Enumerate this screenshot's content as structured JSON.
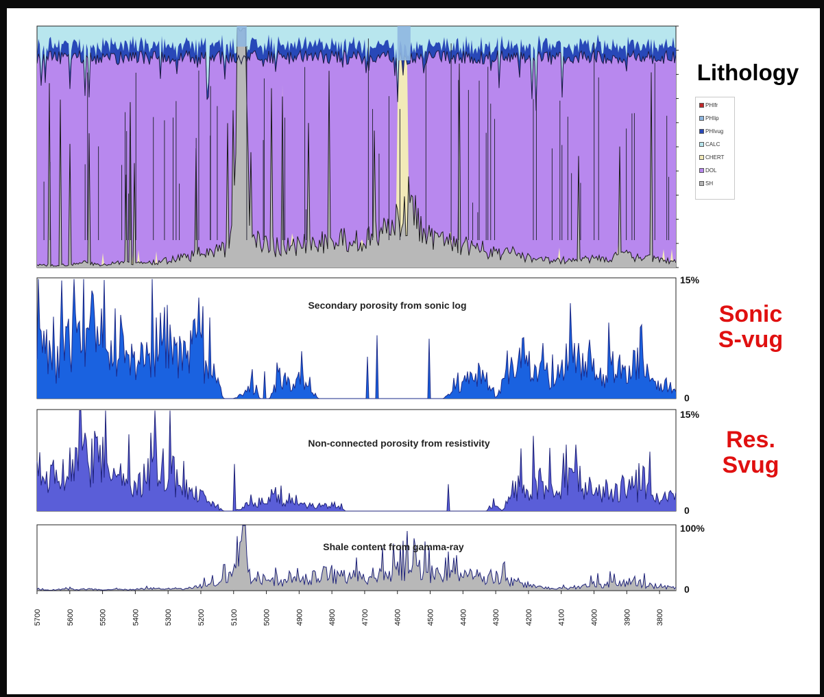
{
  "side_labels": {
    "lithology": "Lithology",
    "sonic_line1": "Sonic",
    "sonic_line2": "S-vug",
    "res_line1": "Res.",
    "res_line2": "Svug"
  },
  "chart_data": [
    {
      "type": "area",
      "title": "",
      "series": [
        {
          "name": "PHIfr",
          "color": "#c0282a"
        },
        {
          "name": "PHIip",
          "color": "#8fb7e0"
        },
        {
          "name": "PHIvug",
          "color": "#2848b8"
        },
        {
          "name": "CALC",
          "color": "#b8e6ee"
        },
        {
          "name": "CHERT",
          "color": "#f2eab8"
        },
        {
          "name": "DOL",
          "color": "#b888ee"
        },
        {
          "name": "SH",
          "color": "#b8b8b8"
        }
      ],
      "xlim": [
        5700,
        3750
      ],
      "ylim": [
        0,
        1
      ],
      "grid": false,
      "legend": "right"
    },
    {
      "type": "area",
      "title": "Secondary porosity from sonic log",
      "ylim": [
        0,
        15
      ],
      "ytick_labels": [
        "15%",
        "0"
      ],
      "color": "#1a62e0"
    },
    {
      "type": "area",
      "title": "Non-connected porosity from resistivity",
      "ylim": [
        0,
        15
      ],
      "ytick_labels": [
        "15%",
        "0"
      ],
      "color": "#5a5ed8"
    },
    {
      "type": "area",
      "title": "Shale content from gamma-ray",
      "ylim": [
        0,
        100
      ],
      "ytick_labels": [
        "100%",
        "0"
      ],
      "color": "#b8b8b8"
    }
  ],
  "x_axis": {
    "ticks": [
      "5700",
      "5600",
      "5500",
      "5400",
      "5300",
      "5200",
      "5100",
      "5000",
      "4900",
      "4800",
      "4700",
      "4600",
      "4500",
      "4400",
      "4300",
      "4200",
      "4100",
      "4000",
      "3900",
      "3800"
    ]
  },
  "profiles": {
    "sonic": [
      [
        5700,
        14
      ],
      [
        5680,
        8
      ],
      [
        5640,
        5
      ],
      [
        5600,
        9
      ],
      [
        5560,
        7
      ],
      [
        5540,
        12
      ],
      [
        5520,
        8
      ],
      [
        5500,
        13
      ],
      [
        5480,
        6
      ],
      [
        5440,
        8
      ],
      [
        5400,
        5
      ],
      [
        5360,
        7
      ],
      [
        5320,
        8
      ],
      [
        5300,
        9
      ],
      [
        5260,
        6
      ],
      [
        5220,
        8
      ],
      [
        5200,
        6
      ],
      [
        5170,
        4
      ],
      [
        5150,
        3
      ],
      [
        5130,
        0
      ],
      [
        5100,
        0
      ],
      [
        5060,
        1
      ],
      [
        5050,
        2
      ],
      [
        5020,
        0
      ],
      [
        4990,
        0
      ],
      [
        4960,
        3
      ],
      [
        4930,
        2
      ],
      [
        4900,
        3
      ],
      [
        4880,
        2
      ],
      [
        4860,
        1
      ],
      [
        4840,
        0
      ],
      [
        4800,
        0
      ],
      [
        4780,
        0
      ],
      [
        4760,
        0
      ],
      [
        4720,
        0
      ],
      [
        4700,
        0
      ],
      [
        4680,
        0
      ],
      [
        4640,
        0
      ],
      [
        4600,
        0
      ],
      [
        4560,
        0
      ],
      [
        4500,
        0
      ],
      [
        4460,
        0
      ],
      [
        4430,
        1
      ],
      [
        4410,
        2
      ],
      [
        4380,
        3
      ],
      [
        4350,
        4
      ],
      [
        4320,
        2
      ],
      [
        4300,
        0
      ],
      [
        4280,
        2
      ],
      [
        4250,
        4
      ],
      [
        4220,
        6
      ],
      [
        4190,
        4
      ],
      [
        4160,
        4
      ],
      [
        4130,
        3
      ],
      [
        4100,
        5
      ],
      [
        4070,
        7
      ],
      [
        4040,
        5
      ],
      [
        4000,
        4
      ],
      [
        3970,
        3
      ],
      [
        3940,
        5
      ],
      [
        3910,
        4
      ],
      [
        3880,
        3
      ],
      [
        3850,
        4
      ],
      [
        3820,
        3
      ],
      [
        3790,
        2
      ],
      [
        3760,
        2
      ]
    ],
    "resistivity": [
      [
        5700,
        8
      ],
      [
        5670,
        5
      ],
      [
        5640,
        6
      ],
      [
        5600,
        7
      ],
      [
        5560,
        9
      ],
      [
        5540,
        8
      ],
      [
        5520,
        10
      ],
      [
        5500,
        9
      ],
      [
        5480,
        7
      ],
      [
        5460,
        6
      ],
      [
        5430,
        5
      ],
      [
        5400,
        4
      ],
      [
        5380,
        5
      ],
      [
        5350,
        7
      ],
      [
        5320,
        8
      ],
      [
        5300,
        7
      ],
      [
        5280,
        6
      ],
      [
        5260,
        4
      ],
      [
        5230,
        3
      ],
      [
        5200,
        3
      ],
      [
        5180,
        2
      ],
      [
        5160,
        1
      ],
      [
        5130,
        0
      ],
      [
        5100,
        0
      ],
      [
        5060,
        1
      ],
      [
        5040,
        1
      ],
      [
        5010,
        2
      ],
      [
        4980,
        2
      ],
      [
        4950,
        2
      ],
      [
        4920,
        1
      ],
      [
        4900,
        1
      ],
      [
        4860,
        1
      ],
      [
        4830,
        1
      ],
      [
        4800,
        1
      ],
      [
        4780,
        1
      ],
      [
        4760,
        0
      ],
      [
        4720,
        0
      ],
      [
        4680,
        0
      ],
      [
        4600,
        0
      ],
      [
        4560,
        0
      ],
      [
        4500,
        0
      ],
      [
        4440,
        0
      ],
      [
        4400,
        0
      ],
      [
        4360,
        0
      ],
      [
        4330,
        0
      ],
      [
        4300,
        1
      ],
      [
        4280,
        0
      ],
      [
        4260,
        3
      ],
      [
        4230,
        4
      ],
      [
        4200,
        4
      ],
      [
        4170,
        5
      ],
      [
        4140,
        4
      ],
      [
        4110,
        4
      ],
      [
        4080,
        5
      ],
      [
        4050,
        6
      ],
      [
        4020,
        4
      ],
      [
        3990,
        3
      ],
      [
        3960,
        4
      ],
      [
        3930,
        3
      ],
      [
        3900,
        5
      ],
      [
        3870,
        3
      ],
      [
        3840,
        4
      ],
      [
        3810,
        3
      ],
      [
        3780,
        2
      ],
      [
        3760,
        3
      ]
    ],
    "shale": [
      [
        5700,
        2
      ],
      [
        5660,
        1
      ],
      [
        5620,
        3
      ],
      [
        5580,
        2
      ],
      [
        5540,
        3
      ],
      [
        5500,
        1
      ],
      [
        5460,
        2
      ],
      [
        5420,
        2
      ],
      [
        5380,
        3
      ],
      [
        5340,
        4
      ],
      [
        5300,
        3
      ],
      [
        5260,
        4
      ],
      [
        5220,
        6
      ],
      [
        5200,
        8
      ],
      [
        5180,
        8
      ],
      [
        5160,
        12
      ],
      [
        5140,
        16
      ],
      [
        5120,
        20
      ],
      [
        5100,
        24
      ],
      [
        5090,
        70
      ],
      [
        5080,
        92
      ],
      [
        5070,
        90
      ],
      [
        5060,
        60
      ],
      [
        5050,
        20
      ],
      [
        5030,
        22
      ],
      [
        5000,
        20
      ],
      [
        4970,
        18
      ],
      [
        4940,
        17
      ],
      [
        4900,
        22
      ],
      [
        4880,
        20
      ],
      [
        4860,
        22
      ],
      [
        4840,
        26
      ],
      [
        4820,
        28
      ],
      [
        4800,
        30
      ],
      [
        4780,
        28
      ],
      [
        4760,
        24
      ],
      [
        4740,
        26
      ],
      [
        4720,
        24
      ],
      [
        4700,
        24
      ],
      [
        4680,
        26
      ],
      [
        4660,
        28
      ],
      [
        4640,
        30
      ],
      [
        4620,
        32
      ],
      [
        4600,
        36
      ],
      [
        4580,
        40
      ],
      [
        4560,
        42
      ],
      [
        4540,
        38
      ],
      [
        4520,
        34
      ],
      [
        4500,
        30
      ],
      [
        4480,
        26
      ],
      [
        4460,
        30
      ],
      [
        4440,
        28
      ],
      [
        4420,
        28
      ],
      [
        4400,
        26
      ],
      [
        4380,
        28
      ],
      [
        4360,
        24
      ],
      [
        4340,
        26
      ],
      [
        4320,
        28
      ],
      [
        4300,
        24
      ],
      [
        4280,
        20
      ],
      [
        4260,
        18
      ],
      [
        4240,
        16
      ],
      [
        4220,
        12
      ],
      [
        4200,
        10
      ],
      [
        4180,
        8
      ],
      [
        4160,
        6
      ],
      [
        4140,
        6
      ],
      [
        4120,
        4
      ],
      [
        4100,
        4
      ],
      [
        4080,
        4
      ],
      [
        4060,
        6
      ],
      [
        4040,
        8
      ],
      [
        4020,
        10
      ],
      [
        4000,
        14
      ],
      [
        3980,
        12
      ],
      [
        3960,
        10
      ],
      [
        3940,
        14
      ],
      [
        3920,
        12
      ],
      [
        3900,
        16
      ],
      [
        3880,
        18
      ],
      [
        3860,
        14
      ],
      [
        3840,
        10
      ],
      [
        3820,
        8
      ],
      [
        3800,
        8
      ],
      [
        3780,
        6
      ],
      [
        3760,
        6
      ]
    ],
    "lith_shale": [
      [
        5700,
        1
      ],
      [
        5650,
        1
      ],
      [
        5600,
        1
      ],
      [
        5550,
        2
      ],
      [
        5500,
        1
      ],
      [
        5450,
        2
      ],
      [
        5400,
        2
      ],
      [
        5350,
        2
      ],
      [
        5300,
        3
      ],
      [
        5250,
        4
      ],
      [
        5200,
        6
      ],
      [
        5160,
        7
      ],
      [
        5120,
        8
      ],
      [
        5100,
        15
      ],
      [
        5090,
        98
      ],
      [
        5060,
        98
      ],
      [
        5050,
        12
      ],
      [
        5020,
        10
      ],
      [
        5000,
        9
      ],
      [
        4950,
        8
      ],
      [
        4900,
        9
      ],
      [
        4850,
        10
      ],
      [
        4800,
        12
      ],
      [
        4750,
        11
      ],
      [
        4700,
        12
      ],
      [
        4650,
        14
      ],
      [
        4600,
        18
      ],
      [
        4580,
        24
      ],
      [
        4560,
        26
      ],
      [
        4540,
        20
      ],
      [
        4520,
        14
      ],
      [
        4500,
        12
      ],
      [
        4450,
        10
      ],
      [
        4400,
        9
      ],
      [
        4350,
        8
      ],
      [
        4300,
        6
      ],
      [
        4250,
        6
      ],
      [
        4200,
        4
      ],
      [
        4150,
        3
      ],
      [
        4100,
        3
      ],
      [
        4050,
        3
      ],
      [
        4000,
        4
      ],
      [
        3950,
        4
      ],
      [
        3900,
        5
      ],
      [
        3850,
        4
      ],
      [
        3800,
        3
      ],
      [
        3750,
        3
      ]
    ]
  }
}
